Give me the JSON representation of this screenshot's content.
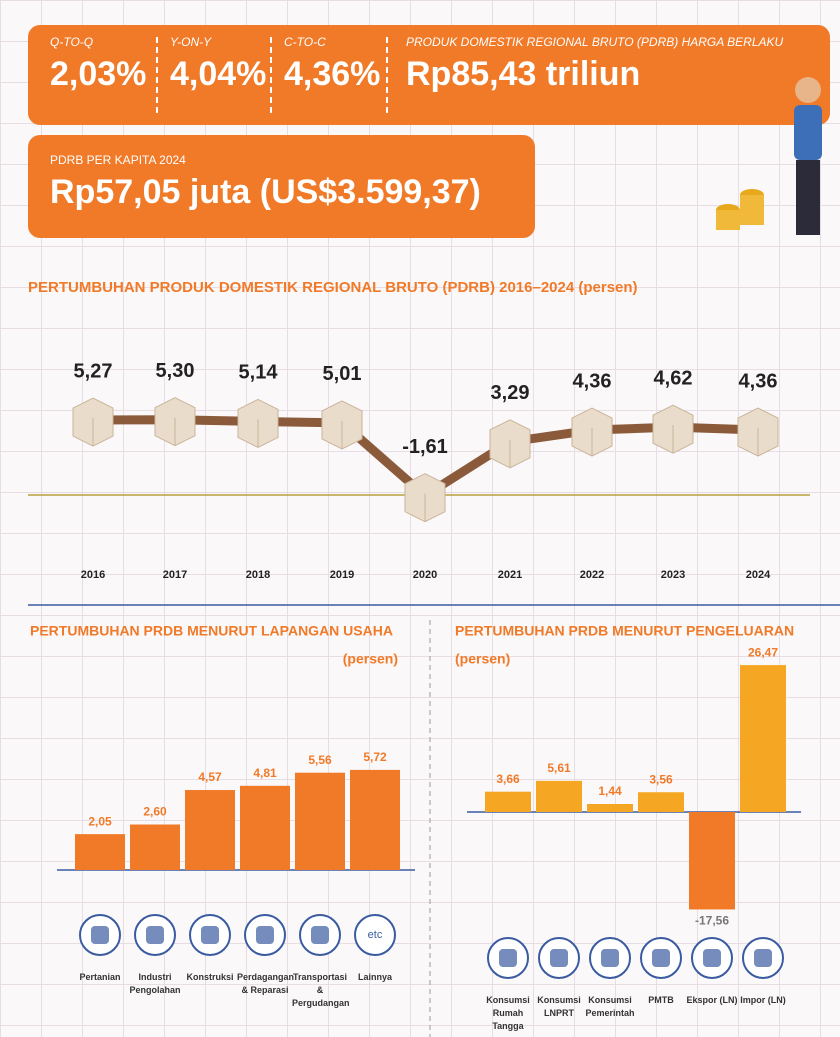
{
  "stats": [
    {
      "label": "Q-TO-Q",
      "value": "2,03%"
    },
    {
      "label": "Y-ON-Y",
      "value": "4,04%"
    },
    {
      "label": "C-TO-C",
      "value": "4,36%"
    },
    {
      "label": "PRODUK DOMESTIK REGIONAL BRUTO (PDRB) HARGA BERLAKU",
      "value": "Rp85,43 triliun"
    }
  ],
  "per_capita": {
    "label": "PDRB PER KAPITA 2024",
    "value": "Rp57,05 juta (US$3.599,37)"
  },
  "chart_data": [
    {
      "type": "line",
      "title": "PERTUMBUHAN PRODUK DOMESTIK REGIONAL BRUTO (PDRB) 2016–2024 (persen)",
      "categories": [
        "2016",
        "2017",
        "2018",
        "2019",
        "2020",
        "2021",
        "2022",
        "2023",
        "2024"
      ],
      "values": [
        5.27,
        5.3,
        5.14,
        5.01,
        -1.61,
        3.29,
        4.36,
        4.62,
        4.36
      ],
      "value_labels": [
        "5,27",
        "5,30",
        "5,14",
        "5,01",
        "-1,61",
        "3,29",
        "4,36",
        "4,62",
        "4,36"
      ],
      "color": "#8a5a3b"
    },
    {
      "type": "bar",
      "title": "PERTUMBUHAN PRDB MENURUT LAPANGAN USAHA",
      "subtitle": "(persen)",
      "categories": [
        "Pertanian",
        "Industri Pengolahan",
        "Konstruksi",
        "Perdagangan & Reparasi",
        "Transportasi & Pergudangan",
        "Lainnya"
      ],
      "values": [
        2.05,
        2.6,
        4.57,
        4.81,
        5.56,
        5.72
      ],
      "value_labels": [
        "2,05",
        "2,60",
        "4,57",
        "4,81",
        "5,56",
        "5,72"
      ],
      "color": "#f07a28",
      "annotation": "etc"
    },
    {
      "type": "bar",
      "title": "PERTUMBUHAN PRDB MENURUT PENGELUARAN",
      "subtitle": "(persen)",
      "categories": [
        "Konsumsi Rumah Tangga",
        "Konsumsi LNPRT",
        "Konsumsi Pemerintah",
        "PMTB",
        "Ekspor (LN)",
        "Impor (LN)"
      ],
      "values": [
        3.66,
        5.61,
        1.44,
        3.56,
        -17.56,
        26.47
      ],
      "value_labels": [
        "3,66",
        "5,61",
        "1,44",
        "3,56",
        "-17,56",
        "26,47"
      ],
      "colors": [
        "#f5a623",
        "#f5a623",
        "#f5a623",
        "#f5a623",
        "#f07a28",
        "#f5a623"
      ]
    }
  ]
}
